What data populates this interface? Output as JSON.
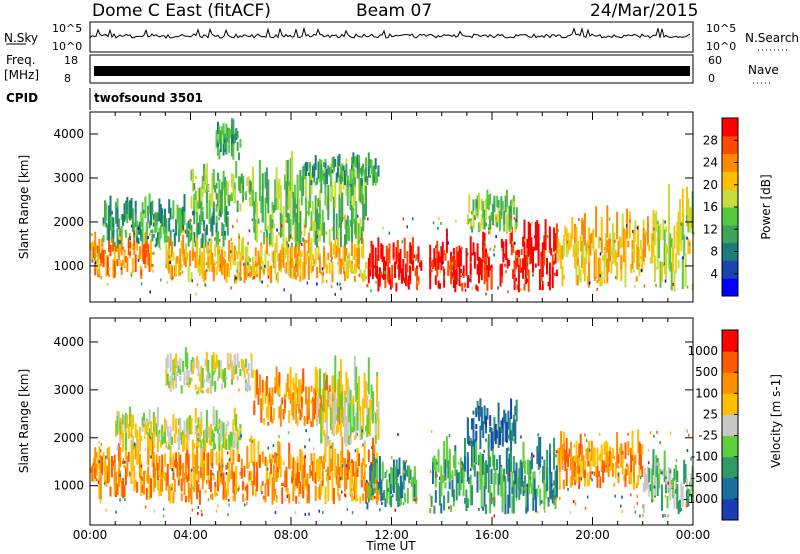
{
  "header": {
    "station": "Dome C East (fitACF)",
    "beam": "Beam 07",
    "date": "24/Mar/2015"
  },
  "panels": {
    "nsky_label": "N.Sky",
    "nsky_ticks": [
      "10^5",
      "10^0"
    ],
    "nsearch_label": "N.Search",
    "nsearch_ticks": [
      "10^5",
      "10^0"
    ],
    "freq_label": "Freq.",
    "freq_unit": "[MHz]",
    "freq_ticks": [
      "18",
      "8"
    ],
    "nave_label": "Nave",
    "nave_ticks": [
      "60",
      "0"
    ],
    "cpid_label": "CPID",
    "cpid_value": "twofsound 3501"
  },
  "chart_data": [
    {
      "type": "heatmap",
      "name": "power",
      "xlabel": "",
      "ylabel": "Slant Range [km]",
      "x_ticks": [
        "00:00",
        "04:00",
        "08:00",
        "12:00",
        "16:00",
        "20:00",
        "00:00"
      ],
      "xlim_hours": [
        0,
        24
      ],
      "ylim_km": [
        180,
        4500
      ],
      "y_ticks": [
        1000,
        2000,
        3000,
        4000
      ],
      "colorbar": {
        "label": "Power [dB]",
        "ticks": [
          4,
          8,
          12,
          16,
          20,
          24,
          28
        ],
        "colors": [
          "#0000ff",
          "#1a44b0",
          "#1b7a7a",
          "#3fa35a",
          "#55c83c",
          "#c8dd3c",
          "#ffc000",
          "#ff8a00",
          "#ff4a00",
          "#ff0000"
        ]
      },
      "bands": [
        {
          "t0": 0.0,
          "t1": 2.5,
          "r0": 700,
          "r1": 1400,
          "level": 7
        },
        {
          "t0": 0.5,
          "t1": 5.5,
          "r0": 1400,
          "r1": 2200,
          "level": 3
        },
        {
          "t0": 3.0,
          "t1": 11.0,
          "r0": 600,
          "r1": 1300,
          "level": 6
        },
        {
          "t0": 4.0,
          "t1": 6.5,
          "r0": 2200,
          "r1": 3000,
          "level": 4
        },
        {
          "t0": 5.0,
          "t1": 6.0,
          "r0": 3400,
          "r1": 4000,
          "level": 3
        },
        {
          "t0": 6.5,
          "t1": 11.0,
          "r0": 1400,
          "r1": 2800,
          "level": 4
        },
        {
          "t0": 8.5,
          "t1": 11.5,
          "r0": 2800,
          "r1": 3300,
          "level": 3
        },
        {
          "t0": 11.0,
          "t1": 13.2,
          "r0": 400,
          "r1": 1200,
          "level": 9
        },
        {
          "t0": 13.5,
          "t1": 16.0,
          "r0": 400,
          "r1": 1300,
          "level": 9
        },
        {
          "t0": 16.3,
          "t1": 18.6,
          "r0": 400,
          "r1": 1500,
          "level": 9
        },
        {
          "t0": 18.6,
          "t1": 22.5,
          "r0": 500,
          "r1": 1700,
          "level": 6
        },
        {
          "t0": 22.5,
          "t1": 24.0,
          "r0": 400,
          "r1": 2000,
          "level": 5
        },
        {
          "t0": 15.0,
          "t1": 17.0,
          "r0": 1700,
          "r1": 2400,
          "level": 4
        }
      ]
    },
    {
      "type": "heatmap",
      "name": "velocity",
      "xlabel": "Time UT",
      "ylabel": "Slant Range [km]",
      "x_ticks": [
        "00:00",
        "04:00",
        "08:00",
        "12:00",
        "16:00",
        "20:00",
        "00:00"
      ],
      "xlim_hours": [
        0,
        24
      ],
      "ylim_km": [
        180,
        4500
      ],
      "y_ticks": [
        1000,
        2000,
        3000,
        4000
      ],
      "colorbar": {
        "label": "Velocity [m s-1]",
        "ticks": [
          1000,
          500,
          100,
          25,
          -25,
          -100,
          -500,
          -1000
        ],
        "colors": [
          "#1a3cb4",
          "#1b6e9c",
          "#2e9a66",
          "#5ecf3a",
          "#c8c8c8",
          "#ffc000",
          "#ff9000",
          "#ff5a00",
          "#ff0000"
        ]
      },
      "bands": [
        {
          "t0": 0.0,
          "t1": 3.0,
          "r0": 700,
          "r1": 1600,
          "level": 6
        },
        {
          "t0": 3.0,
          "t1": 11.5,
          "r0": 600,
          "r1": 1500,
          "level": 6
        },
        {
          "t0": 1.0,
          "t1": 6.0,
          "r0": 1700,
          "r1": 2300,
          "level": 4
        },
        {
          "t0": 3.0,
          "t1": 6.5,
          "r0": 2900,
          "r1": 3500,
          "level": 4
        },
        {
          "t0": 6.5,
          "t1": 10.0,
          "r0": 2200,
          "r1": 3000,
          "level": 6
        },
        {
          "t0": 9.0,
          "t1": 11.5,
          "r0": 1800,
          "r1": 3000,
          "level": 4
        },
        {
          "t0": 11.0,
          "t1": 13.0,
          "r0": 500,
          "r1": 1300,
          "level": 2
        },
        {
          "t0": 13.5,
          "t1": 18.6,
          "r0": 400,
          "r1": 1500,
          "level": 2
        },
        {
          "t0": 18.6,
          "t1": 22.0,
          "r0": 900,
          "r1": 1700,
          "level": 6
        },
        {
          "t0": 22.0,
          "t1": 24.0,
          "r0": 400,
          "r1": 1300,
          "level": 3
        },
        {
          "t0": 15.0,
          "t1": 17.0,
          "r0": 1700,
          "r1": 2500,
          "level": 1
        }
      ]
    }
  ]
}
